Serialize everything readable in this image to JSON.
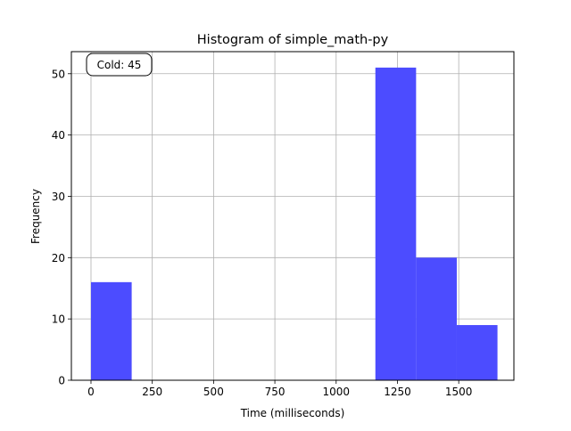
{
  "chart_data": {
    "type": "bar",
    "subtype": "histogram",
    "title": "Histogram of simple_math-py",
    "xlabel": "Time (milliseconds)",
    "ylabel": "Frequency",
    "xlim": [
      -80,
      1725
    ],
    "ylim": [
      0,
      53.6
    ],
    "xticks": [
      0,
      250,
      500,
      750,
      1000,
      1250,
      1500
    ],
    "yticks": [
      0,
      10,
      20,
      30,
      40,
      50
    ],
    "grid": true,
    "bar_color": "#4c4cff",
    "bins": [
      {
        "x0": 0,
        "x1": 166,
        "value": 16
      },
      {
        "x0": 1160,
        "x1": 1326,
        "value": 51
      },
      {
        "x0": 1326,
        "x1": 1492,
        "value": 20
      },
      {
        "x0": 1492,
        "x1": 1658,
        "value": 9
      }
    ],
    "annotation": "Cold: 45",
    "annotation_position": "top-left"
  }
}
